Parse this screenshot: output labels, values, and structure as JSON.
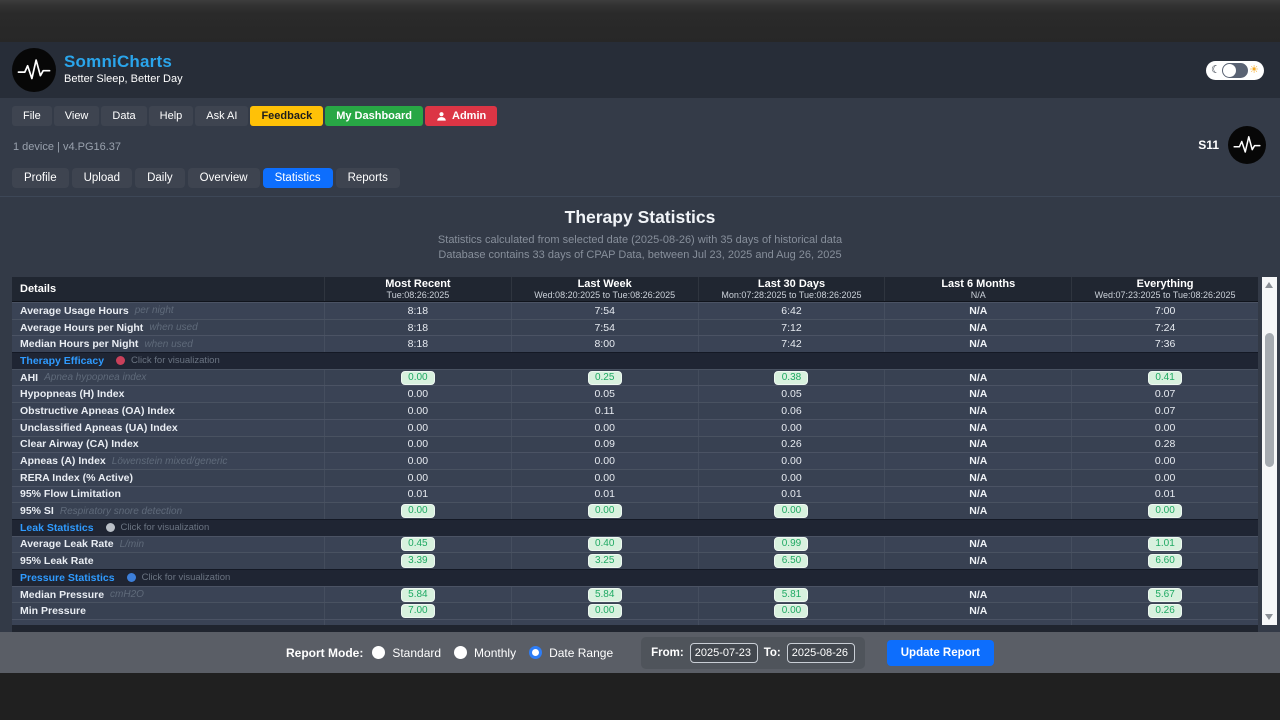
{
  "masthead": {
    "brand": "SomniCharts",
    "tagline": "Better Sleep, Better Day",
    "logo_icon": "somnicharts-waveform-logo",
    "theme_toggle": {
      "moon_icon": "☾",
      "sun_icon": "☀"
    }
  },
  "menubar": {
    "items": [
      {
        "label": "File",
        "variant": "plain"
      },
      {
        "label": "View",
        "variant": "plain"
      },
      {
        "label": "Data",
        "variant": "plain"
      },
      {
        "label": "Help",
        "variant": "plain"
      },
      {
        "label": "Ask AI",
        "variant": "plain"
      },
      {
        "label": "Feedback",
        "variant": "warning"
      },
      {
        "label": "My Dashboard",
        "variant": "success"
      },
      {
        "label": "Admin",
        "variant": "danger",
        "icon": "person-icon"
      }
    ]
  },
  "statusbar": {
    "device_info": "1 device | v4.PG16.37",
    "machine": "S11"
  },
  "tabs": {
    "items": [
      {
        "label": "Profile",
        "active": false
      },
      {
        "label": "Upload",
        "active": false
      },
      {
        "label": "Daily",
        "active": false
      },
      {
        "label": "Overview",
        "active": false
      },
      {
        "label": "Statistics",
        "active": true
      },
      {
        "label": "Reports",
        "active": false
      }
    ]
  },
  "hero": {
    "title": "Therapy Statistics",
    "subtitle1": "Statistics calculated from selected date (2025-08-26) with 35 days of historical data",
    "subtitle2": "Database contains 33 days of CPAP Data, between Jul 23, 2025 and Aug 26, 2025"
  },
  "table": {
    "columns": [
      {
        "label": "Details",
        "range": ""
      },
      {
        "label": "Most Recent",
        "range": "Tue:08:26:2025"
      },
      {
        "label": "Last Week",
        "range": "Wed:08:20:2025 to Tue:08:26:2025"
      },
      {
        "label": "Last 30 Days",
        "range": "Mon:07:28:2025 to Tue:08:26:2025"
      },
      {
        "label": "Last 6 Months",
        "range": "N/A"
      },
      {
        "label": "Everything",
        "range": "Wed:07:23:2025 to Tue:08:26:2025"
      }
    ],
    "rows": [
      {
        "type": "data",
        "label": "Average Usage Hours",
        "qualifier": "per night",
        "badge": false,
        "values": [
          "8:18",
          "7:54",
          "6:42",
          "N/A",
          "7:00"
        ]
      },
      {
        "type": "data",
        "label": "Average Hours per Night",
        "qualifier": "when used",
        "badge": false,
        "values": [
          "8:18",
          "7:54",
          "7:12",
          "N/A",
          "7:24"
        ]
      },
      {
        "type": "data",
        "label": "Median Hours per Night",
        "qualifier": "when used",
        "badge": false,
        "values": [
          "8:18",
          "8:00",
          "7:42",
          "N/A",
          "7:36"
        ]
      },
      {
        "type": "section",
        "label": "Therapy Efficacy",
        "note": "Click for visualization",
        "icon_color": "#c9405a"
      },
      {
        "type": "data",
        "label": "AHI",
        "qualifier": "Apnea hypopnea index",
        "badge": true,
        "values": [
          "0.00",
          "0.25",
          "0.38",
          "N/A",
          "0.41"
        ]
      },
      {
        "type": "data",
        "label": "Hypopneas (H) Index",
        "qualifier": "",
        "badge": false,
        "values": [
          "0.00",
          "0.05",
          "0.05",
          "N/A",
          "0.07"
        ]
      },
      {
        "type": "data",
        "label": "Obstructive Apneas (OA) Index",
        "qualifier": "",
        "badge": false,
        "values": [
          "0.00",
          "0.11",
          "0.06",
          "N/A",
          "0.07"
        ]
      },
      {
        "type": "data",
        "label": "Unclassified Apneas (UA) Index",
        "qualifier": "",
        "badge": false,
        "values": [
          "0.00",
          "0.00",
          "0.00",
          "N/A",
          "0.00"
        ]
      },
      {
        "type": "data",
        "label": "Clear Airway (CA) Index",
        "qualifier": "",
        "badge": false,
        "values": [
          "0.00",
          "0.09",
          "0.26",
          "N/A",
          "0.28"
        ]
      },
      {
        "type": "data",
        "label": "Apneas (A) Index",
        "qualifier": "Löwenstein mixed/generic",
        "badge": false,
        "values": [
          "0.00",
          "0.00",
          "0.00",
          "N/A",
          "0.00"
        ]
      },
      {
        "type": "data",
        "label": "RERA Index (% Active)",
        "qualifier": "",
        "badge": false,
        "values": [
          "0.00",
          "0.00",
          "0.00",
          "N/A",
          "0.00"
        ]
      },
      {
        "type": "data",
        "label": "95% Flow Limitation",
        "qualifier": "",
        "badge": false,
        "values": [
          "0.01",
          "0.01",
          "0.01",
          "N/A",
          "0.01"
        ]
      },
      {
        "type": "data",
        "label": "95% SI",
        "qualifier": "Respiratory snore detection",
        "badge": true,
        "values": [
          "0.00",
          "0.00",
          "0.00",
          "N/A",
          "0.00"
        ]
      },
      {
        "type": "section",
        "label": "Leak Statistics",
        "note": "Click for visualization",
        "icon_color": "#b9bfc7"
      },
      {
        "type": "data",
        "label": "Average Leak Rate",
        "qualifier": "L/min",
        "badge": true,
        "values": [
          "0.45",
          "0.40",
          "0.99",
          "N/A",
          "1.01"
        ]
      },
      {
        "type": "data",
        "label": "95% Leak Rate",
        "qualifier": "",
        "badge": true,
        "values": [
          "3.39",
          "3.25",
          "6.50",
          "N/A",
          "6.60"
        ]
      },
      {
        "type": "section",
        "label": "Pressure Statistics",
        "note": "Click for visualization",
        "icon_color": "#3d7fd9"
      },
      {
        "type": "data",
        "label": "Median Pressure",
        "qualifier": "cmH2O",
        "badge": true,
        "values": [
          "5.84",
          "5.84",
          "5.81",
          "N/A",
          "5.67"
        ]
      },
      {
        "type": "data",
        "label": "Min Pressure",
        "qualifier": "",
        "badge": true,
        "values": [
          "7.00",
          "0.00",
          "0.00",
          "N/A",
          "0.26"
        ]
      },
      {
        "type": "data",
        "label": "",
        "qualifier": "",
        "badge": true,
        "partial": true,
        "values": [
          "",
          "",
          "",
          null,
          ""
        ]
      }
    ]
  },
  "footer": {
    "report_mode_label": "Report Mode:",
    "modes": [
      {
        "label": "Standard",
        "selected": false
      },
      {
        "label": "Monthly",
        "selected": false
      },
      {
        "label": "Date Range",
        "selected": true
      }
    ],
    "from_label": "From:",
    "from_value": "2025-07-23",
    "to_label": "To:",
    "to_value": "2025-08-26",
    "update_label": "Update Report"
  },
  "colors": {
    "brand_blue": "#2aa5eb",
    "tab_active": "#0d6efd",
    "feedback_button": "#ffc107",
    "dashboard_button": "#28a745",
    "admin_button": "#dc3545",
    "badge_bg": "#d8f1de",
    "badge_text": "#1fa963",
    "section_label": "#2f9bff",
    "update_button": "#0d6efd",
    "footer_bar": "#5a5e66"
  }
}
